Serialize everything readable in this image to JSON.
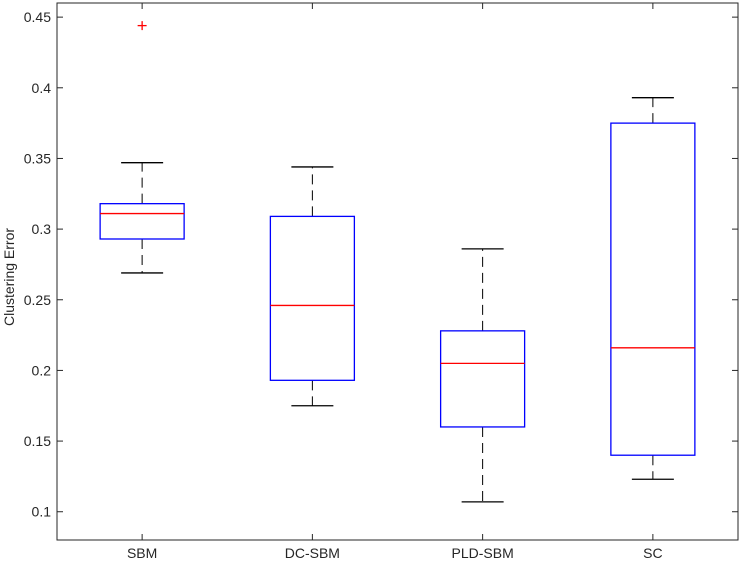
{
  "chart_data": {
    "type": "boxplot",
    "title": "",
    "xlabel": "",
    "ylabel": "Clustering Error",
    "categories": [
      "SBM",
      "DC-SBM",
      "PLD-SBM",
      "SC"
    ],
    "ylim": [
      0.08,
      0.46
    ],
    "yticks": [
      "0.1",
      "0.15",
      "0.2",
      "0.25",
      "0.3",
      "0.35",
      "0.4",
      "0.45"
    ],
    "grid": false,
    "boxes": [
      {
        "category": "SBM",
        "whisker_low": 0.269,
        "q1": 0.293,
        "median": 0.311,
        "q3": 0.318,
        "whisker_high": 0.347,
        "outliers": [
          0.444
        ]
      },
      {
        "category": "DC-SBM",
        "whisker_low": 0.175,
        "q1": 0.193,
        "median": 0.246,
        "q3": 0.309,
        "whisker_high": 0.344,
        "outliers": []
      },
      {
        "category": "PLD-SBM",
        "whisker_low": 0.107,
        "q1": 0.16,
        "median": 0.205,
        "q3": 0.228,
        "whisker_high": 0.286,
        "outliers": []
      },
      {
        "category": "SC",
        "whisker_low": 0.123,
        "q1": 0.14,
        "median": 0.216,
        "q3": 0.375,
        "whisker_high": 0.393,
        "outliers": []
      }
    ],
    "colors": {
      "box": "#0000ff",
      "median": "#ff0000",
      "whisker": "#000000",
      "outlier": "#ff0000",
      "axis": "#262626"
    }
  }
}
